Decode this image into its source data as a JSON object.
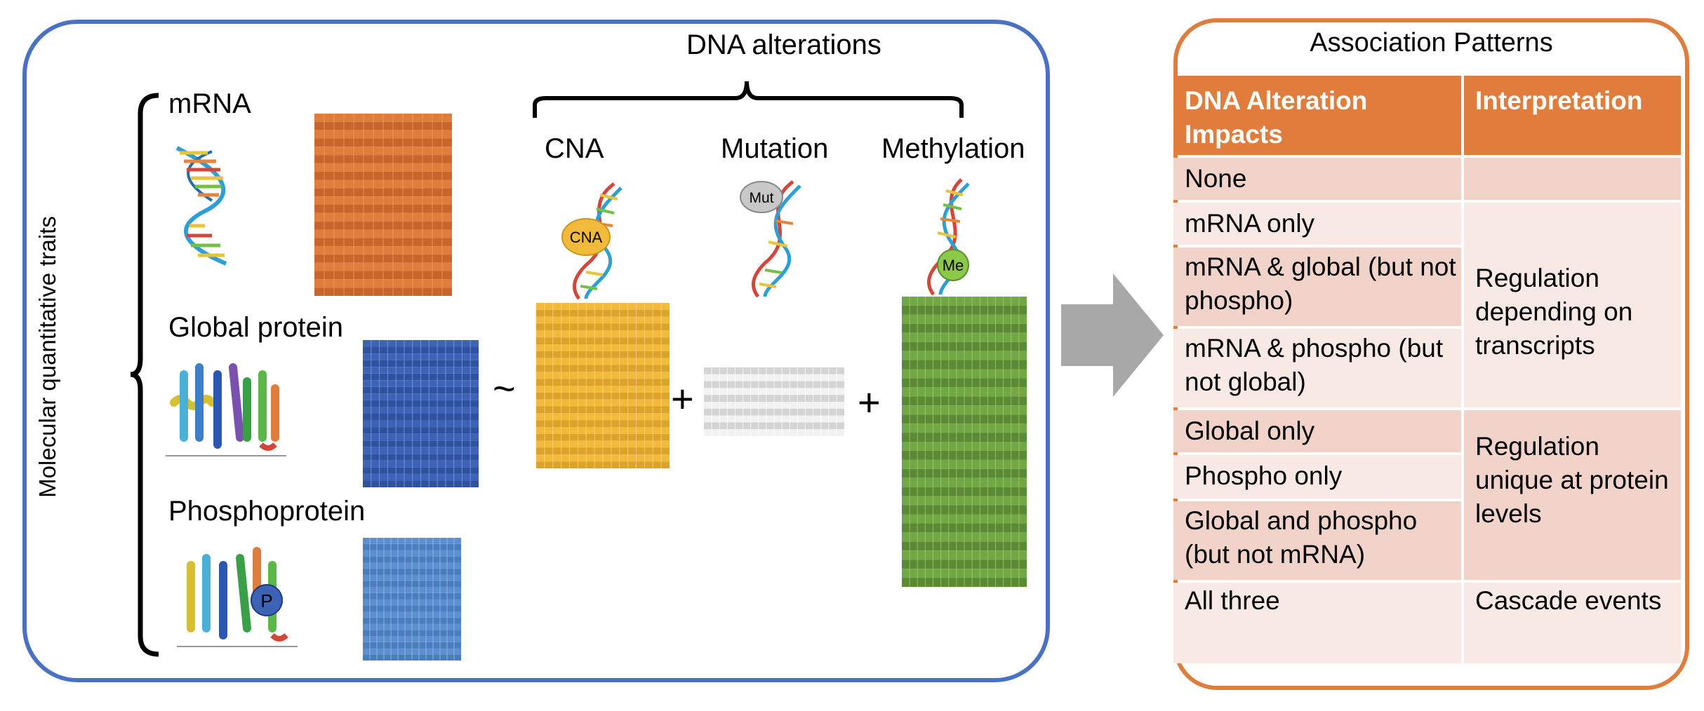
{
  "left": {
    "vertical_label": "Molecular quantitative traits",
    "traits": {
      "mrna": "mRNA",
      "global": "Global protein",
      "phospho": "Phosphoprotein"
    },
    "tilde": "~",
    "plus": "+",
    "dna_alterations": "DNA alterations",
    "cna": "CNA",
    "mutation": "Mutation",
    "methylation": "Methylation",
    "cna_badge": "CNA",
    "mut_badge": "Mut",
    "me_badge": "Me",
    "p_badge": "P"
  },
  "right": {
    "title": "Association Patterns",
    "headers": [
      "DNA Alteration Impacts",
      "Interpretation"
    ],
    "impacts": [
      "None",
      "mRNA only",
      "mRNA & global  (but not phospho)",
      "mRNA & phospho (but not global)",
      "Global only",
      "Phospho only",
      "Global and phospho (but not mRNA)",
      "All three"
    ],
    "interpretations": [
      "Regulation depending on transcripts",
      "Regulation unique at protein levels",
      "Cascade events"
    ]
  },
  "colors": {
    "left_border": "#4a72c4",
    "right_border": "#e07c3c",
    "mrna_matrix": "#e07c3c",
    "global_matrix": "#3d63b8",
    "phospho_matrix": "#5b8fcf",
    "cna_matrix": "#f2ba3a",
    "mutation_matrix": "#d4d4d4",
    "methylation_matrix": "#72a844",
    "arrow": "#a8a8a8"
  },
  "icons": [
    "dna-helix-icon",
    "protein-structure-icon",
    "right-arrow-icon",
    "curly-brace-icon"
  ]
}
